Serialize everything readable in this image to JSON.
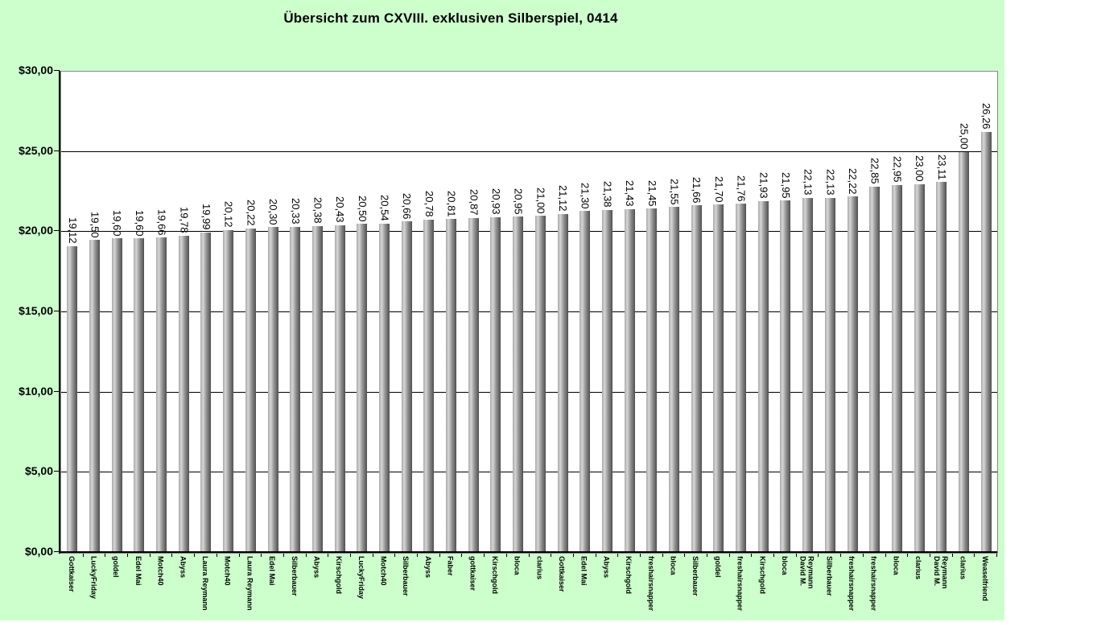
{
  "title": "Übersicht zum CXVIII. exklusiven Silberspiel, 0414",
  "colors": {
    "chart_bg": "#ccffcc",
    "plot_bg": "#ffffff",
    "gridline": "#000000",
    "plot_border": "#868686",
    "bar_gradient_light": "#d6d6d6",
    "bar_gradient_mid": "#a8a8a8",
    "bar_gradient_dark": "#4f4f4f",
    "text": "#000000"
  },
  "y_axis": {
    "min": 0,
    "max": 30,
    "step": 5,
    "tick_labels": [
      "$0,00",
      "$5,00",
      "$10,00",
      "$15,00",
      "$20,00",
      "$25,00",
      "$30,00"
    ]
  },
  "chart_data": {
    "type": "bar",
    "title": "Übersicht zum CXVIII. exklusiven Silberspiel, 0414",
    "xlabel": "",
    "ylabel": "",
    "ylim": [
      0,
      30
    ],
    "grid": true,
    "legend": false,
    "value_format": "german-decimal-comma",
    "categories": [
      "Gottkaiser",
      "LuckyFriday",
      "goldel",
      "Edel Mai",
      "Motch40",
      "Abyss",
      "Laura Reymann",
      "Motch40",
      "Laura Reymann",
      "Edel Mai",
      "Silberbauer",
      "Abyss",
      "Kirschgold",
      "LuckyFriday",
      "Motch40",
      "Silberbauer",
      "Abyss",
      "Faber",
      "gottkaiser",
      "Kirschgold",
      "bloca",
      "clarius",
      "Gottkaiser",
      "Edel Mai",
      "Abyss",
      "Kirschgold",
      "freshairsnapper",
      "bloca",
      "Silberbauer",
      "goldel",
      "freshairsnapper",
      "Kirschgold",
      "bloca",
      "David M.\nReymann",
      "Silberbauer",
      "freshairsnapper",
      "freshairsnapper",
      "bloca",
      "clarius",
      "David M.\nReymann",
      "clarius",
      "Weaselfriend"
    ],
    "values": [
      19.12,
      19.5,
      19.6,
      19.6,
      19.66,
      19.78,
      19.99,
      20.12,
      20.22,
      20.3,
      20.33,
      20.38,
      20.43,
      20.5,
      20.54,
      20.66,
      20.78,
      20.81,
      20.87,
      20.93,
      20.95,
      21.0,
      21.12,
      21.3,
      21.38,
      21.43,
      21.45,
      21.55,
      21.66,
      21.7,
      21.76,
      21.93,
      21.95,
      22.13,
      22.13,
      22.22,
      22.85,
      22.95,
      23.0,
      23.11,
      25.0,
      26.26
    ],
    "value_labels": [
      "19,12",
      "19,50",
      "19,60",
      "19,60",
      "19,66",
      "19,78",
      "19,99",
      "20,12",
      "20,22",
      "20,30",
      "20,33",
      "20,38",
      "20,43",
      "20,50",
      "20,54",
      "20,66",
      "20,78",
      "20,81",
      "20,87",
      "20,93",
      "20,95",
      "21,00",
      "21,12",
      "21,30",
      "21,38",
      "21,43",
      "21,45",
      "21,55",
      "21,66",
      "21,70",
      "21,76",
      "21,93",
      "21,95",
      "22,13",
      "22,13",
      "22,22",
      "22,85",
      "22,95",
      "23,00",
      "23,11",
      "25,00",
      "26,26"
    ]
  }
}
